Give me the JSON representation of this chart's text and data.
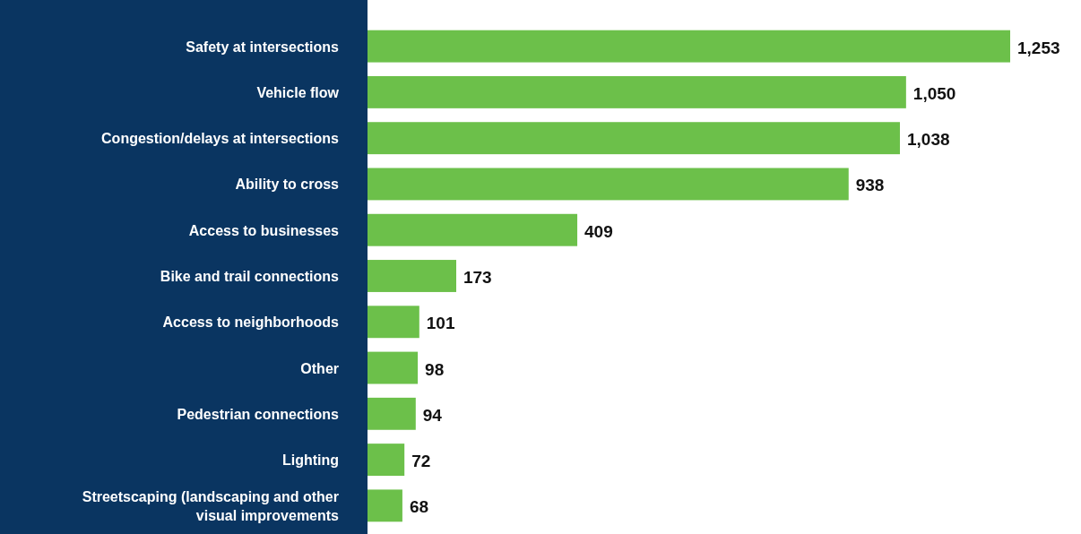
{
  "chart_data": {
    "type": "bar",
    "orientation": "horizontal",
    "categories": [
      "Safety at intersections",
      "Vehicle flow",
      "Congestion/delays at intersections",
      "Ability to cross",
      "Access to businesses",
      "Bike and trail connections",
      "Access to neighborhoods",
      "Other",
      "Pedestrian connections",
      "Lighting",
      "Streetscaping (landscaping and other visual improvements"
    ],
    "values": [
      1253,
      1050,
      1038,
      938,
      409,
      173,
      101,
      98,
      94,
      72,
      68
    ],
    "value_labels": [
      "1,253",
      "1,050",
      "1,038",
      "938",
      "409",
      "173",
      "101",
      "98",
      "94",
      "72",
      "68"
    ],
    "color": "#6cc04a"
  }
}
